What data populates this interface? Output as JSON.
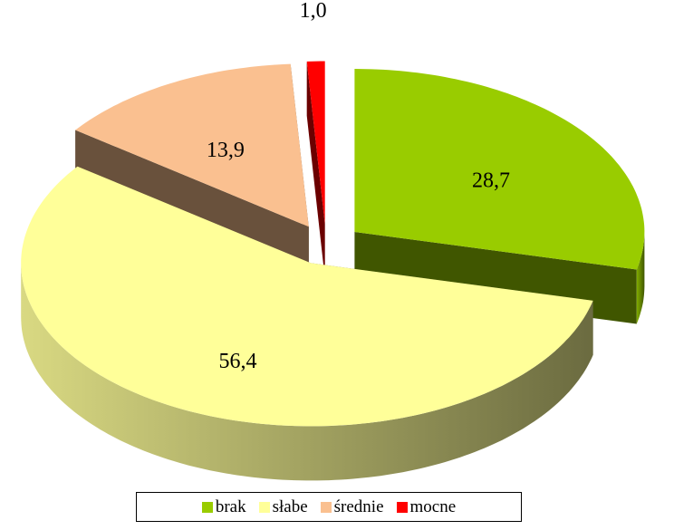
{
  "chart_data": {
    "type": "pie",
    "categories": [
      "brak",
      "słabe",
      "średnie",
      "mocne"
    ],
    "values": [
      28.7,
      56.4,
      13.9,
      1.0
    ],
    "value_labels": [
      "28,7",
      "56,4",
      "13,9",
      "1,0"
    ],
    "colors": [
      "#99cc00",
      "#ffff99",
      "#fac090",
      "#ff0000"
    ],
    "legend": "bottom"
  }
}
